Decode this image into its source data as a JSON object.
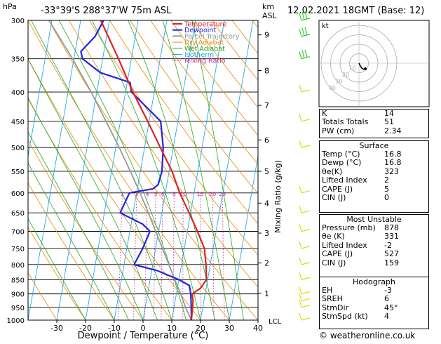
{
  "header": {
    "left_title": "-33°39'S  288°37'W  75m  ASL",
    "right_title": "12.02.2021  18GMT  (Base: 12)",
    "hpa_label": "hPa",
    "km_label": "km",
    "asl_label": "ASL"
  },
  "chart_data": {
    "type": "line",
    "title": "-33°39'S  288°37'W  75m  ASL",
    "xlabel": "Dewpoint / Temperature (°C)",
    "ylabel": "hPa",
    "right_axis_label": "Mixing Ratio (g/kg)",
    "x_ticks": [
      -30,
      -20,
      -10,
      0,
      10,
      20,
      30,
      40
    ],
    "y_ticks": [
      300,
      350,
      400,
      450,
      500,
      550,
      600,
      650,
      700,
      750,
      800,
      850,
      900,
      950,
      1000
    ],
    "xlim": [
      -40,
      40
    ],
    "ylim": [
      1000,
      300
    ],
    "skew": "x shifted 35°C per decade of log-pressure",
    "km_ticks": [
      {
        "label": "1",
        "p": 898
      },
      {
        "label": "2",
        "p": 795
      },
      {
        "label": "3",
        "p": 705
      },
      {
        "label": "4",
        "p": 625
      },
      {
        "label": "5",
        "p": 550
      },
      {
        "label": "6",
        "p": 485
      },
      {
        "label": "7",
        "p": 422
      },
      {
        "label": "8",
        "p": 367
      },
      {
        "label": "9",
        "p": 318
      }
    ],
    "lcl_label": "LCL",
    "mixing_ratio_labels": [
      "2",
      "3",
      "4",
      "5",
      "6",
      "8",
      "10",
      "15",
      "20",
      "25"
    ],
    "mixing_ratio_values": [
      2,
      3,
      4,
      5,
      6,
      8,
      10,
      15,
      20,
      25
    ],
    "legend": [
      "Temperature",
      "Dewpoint",
      "Parcel Trajectory",
      "Dry Adiabat",
      "Wet Adiabat",
      "Isotherm",
      "Mixing Ratio"
    ],
    "legend_position": "top-left of plot",
    "series": [
      {
        "name": "Temperature",
        "color": "#dd2222",
        "points": [
          [
            1000,
            16.8
          ],
          [
            950,
            16.5
          ],
          [
            925,
            16.2
          ],
          [
            900,
            15.5
          ],
          [
            880,
            18.0
          ],
          [
            850,
            19.6
          ],
          [
            800,
            18.5
          ],
          [
            750,
            17.0
          ],
          [
            700,
            13.5
          ],
          [
            650,
            9.5
          ],
          [
            600,
            5.0
          ],
          [
            550,
            1.0
          ],
          [
            500,
            -4.5
          ],
          [
            450,
            -10.5
          ],
          [
            400,
            -17.5
          ],
          [
            350,
            -24.5
          ],
          [
            300,
            -33.0
          ]
        ]
      },
      {
        "name": "Dewpoint",
        "color": "#2222dd",
        "points": [
          [
            1000,
            16.8
          ],
          [
            950,
            16.0
          ],
          [
            900,
            15.0
          ],
          [
            870,
            14.0
          ],
          [
            850,
            10.0
          ],
          [
            820,
            2.0
          ],
          [
            800,
            -6.5
          ],
          [
            750,
            -4.5
          ],
          [
            700,
            -3.0
          ],
          [
            680,
            -6.0
          ],
          [
            650,
            -14.5
          ],
          [
            600,
            -12.5
          ],
          [
            590,
            -4.5
          ],
          [
            580,
            -3.0
          ],
          [
            550,
            -2.5
          ],
          [
            500,
            -3.5
          ],
          [
            450,
            -6.0
          ],
          [
            400,
            -18.0
          ],
          [
            385,
            -19.0
          ],
          [
            370,
            -30.0
          ],
          [
            350,
            -37.0
          ],
          [
            340,
            -38.0
          ],
          [
            320,
            -34.0
          ],
          [
            300,
            -32.0
          ]
        ]
      },
      {
        "name": "Parcel Trajectory",
        "color": "#999999",
        "points": [
          [
            1000,
            16.8
          ],
          [
            950,
            14.0
          ],
          [
            900,
            11.5
          ],
          [
            850,
            8.6
          ],
          [
            800,
            5.6
          ],
          [
            750,
            2.4
          ],
          [
            700,
            -1.0
          ],
          [
            650,
            -4.7
          ],
          [
            600,
            -8.8
          ],
          [
            550,
            -13.5
          ],
          [
            500,
            -18.8
          ],
          [
            450,
            -25.0
          ],
          [
            400,
            -32.0
          ],
          [
            350,
            -40.5
          ],
          [
            300,
            -51.0
          ]
        ]
      }
    ]
  },
  "hodograph": {
    "label": "kt",
    "ring_labels": [
      "10",
      "20",
      "30",
      "40"
    ]
  },
  "indices": [
    {
      "label": "K",
      "value": "14"
    },
    {
      "label": "Totals Totals",
      "value": "51"
    },
    {
      "label": "PW (cm)",
      "value": "2.34"
    }
  ],
  "surface": {
    "title": "Surface",
    "rows": [
      {
        "label": "Temp (°C)",
        "value": "16.8"
      },
      {
        "label": "Dewp (°C)",
        "value": "16.8"
      },
      {
        "label": "θe(K)",
        "value": "323"
      },
      {
        "label": "Lifted Index",
        "value": "2"
      },
      {
        "label": "CAPE (J)",
        "value": "5"
      },
      {
        "label": "CIN (J)",
        "value": "0"
      }
    ]
  },
  "most_unstable": {
    "title": "Most Unstable",
    "rows": [
      {
        "label": "Pressure (mb)",
        "value": "878"
      },
      {
        "label": "θe (K)",
        "value": "331"
      },
      {
        "label": "Lifted Index",
        "value": "-2"
      },
      {
        "label": "CAPE (J)",
        "value": "527"
      },
      {
        "label": "CIN (J)",
        "value": "159"
      }
    ]
  },
  "hodograph_table": {
    "title": "Hodograph",
    "rows": [
      {
        "label": "EH",
        "value": "-3"
      },
      {
        "label": "SREH",
        "value": "6"
      },
      {
        "label": "StmDir",
        "value": "45°"
      },
      {
        "label": "StmSpd (kt)",
        "value": "4"
      }
    ]
  },
  "footer": {
    "copyright": "© weatheronline.co.uk"
  },
  "colors": {
    "temperature": "#dd2222",
    "dewpoint": "#2222dd",
    "parcel": "#999999",
    "dry_adiabat": "#ee8800",
    "wet_adiabat": "#22aa22",
    "isotherm": "#22aaee",
    "mixing_ratio": "#cc3399",
    "wind_barb": "#dddd00",
    "wind_barb_top": "#33cc33"
  }
}
